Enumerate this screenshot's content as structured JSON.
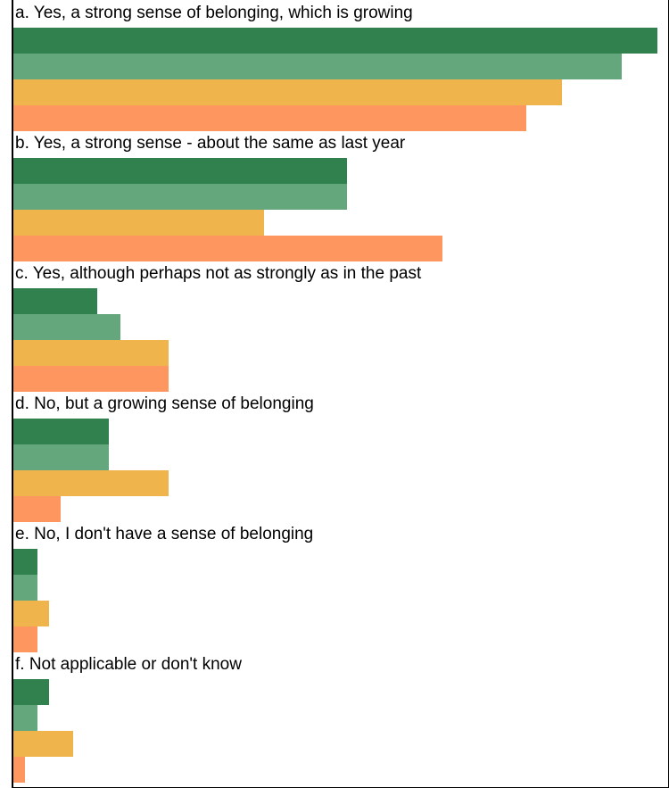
{
  "chart_data": {
    "type": "bar",
    "orientation": "horizontal",
    "categories": [
      "a. Yes, a strong sense of belonging, which is growing",
      "b. Yes, a strong sense - about the same as last year",
      "c. Yes, although perhaps not as strongly as in the past",
      "d. No, but a growing sense of belonging",
      "e. No, I don't have a sense of belonging",
      "f. Not applicable or don't know"
    ],
    "series": [
      {
        "color": "#31814f",
        "values": [
          54,
          28,
          7,
          8,
          2,
          3
        ]
      },
      {
        "color": "#64a77c",
        "values": [
          51,
          28,
          9,
          8,
          2,
          2
        ]
      },
      {
        "color": "#efb54c",
        "values": [
          46,
          21,
          13,
          13,
          3,
          5
        ]
      },
      {
        "color": "#fe965f",
        "values": [
          43,
          36,
          13,
          4,
          2,
          1
        ]
      }
    ],
    "xlim": [
      0,
      54
    ],
    "grid": false,
    "legend": "none"
  }
}
